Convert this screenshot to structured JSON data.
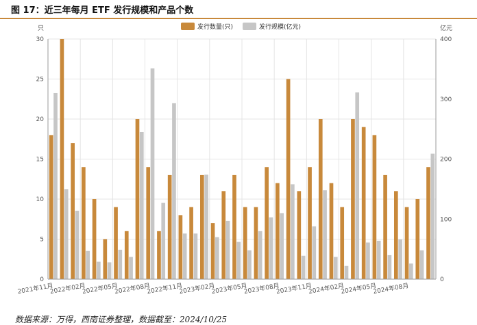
{
  "figure_title": "图 17：近三年每月 ETF 发行规模和产品个数",
  "source_note": "数据来源：万得，西南证券整理，数据截至：2024/10/25",
  "colors": {
    "series1": "#c8893b",
    "series2": "#c6c6c6",
    "title_rule": "#c8893b"
  },
  "chart_data": {
    "type": "bar",
    "categories": [
      "2021年11月",
      "2021年12月",
      "2022年01月",
      "2022年02月",
      "2022年03月",
      "2022年04月",
      "2022年05月",
      "2022年06月",
      "2022年07月",
      "2022年08月",
      "2022年09月",
      "2022年10月",
      "2022年11月",
      "2022年12月",
      "2023年01月",
      "2023年02月",
      "2023年03月",
      "2023年04月",
      "2023年05月",
      "2023年06月",
      "2023年07月",
      "2023年08月",
      "2023年09月",
      "2023年10月",
      "2023年11月",
      "2023年12月",
      "2024年01月",
      "2024年02月",
      "2024年03月",
      "2024年04月",
      "2024年05月",
      "2024年06月",
      "2024年07月",
      "2024年08月",
      "2024年09月",
      "2024年10月"
    ],
    "x_tick_labels": [
      "2021年11月",
      "2022年02月",
      "2022年05月",
      "2022年08月",
      "2022年11月",
      "2023年02月",
      "2023年05月",
      "2023年08月",
      "2023年11月",
      "2024年02月",
      "2024年05月",
      "2024年08月"
    ],
    "series": [
      {
        "name": "发行数量(只)",
        "axis": "left",
        "values": [
          18,
          30,
          17,
          14,
          10,
          5,
          9,
          6,
          20,
          14,
          6,
          13,
          8,
          9,
          13,
          7,
          11,
          13,
          9,
          9,
          14,
          12,
          25,
          11,
          14,
          20,
          12,
          9,
          20,
          19,
          18,
          13,
          11,
          9,
          10,
          14
        ]
      },
      {
        "name": "发行规模(亿元)",
        "axis": "right",
        "values": [
          310,
          150,
          114,
          47,
          29,
          28,
          49,
          37,
          245,
          351,
          127,
          293,
          76,
          76,
          174,
          70,
          97,
          62,
          48,
          80,
          103,
          110,
          158,
          39,
          88,
          148,
          37,
          22,
          311,
          61,
          64,
          40,
          66,
          26,
          48,
          209
        ]
      }
    ],
    "left_axis": {
      "unit": "只",
      "ylim": [
        0,
        30
      ],
      "ticks": [
        0,
        5,
        10,
        15,
        20,
        25,
        30
      ]
    },
    "right_axis": {
      "unit": "亿元",
      "ylim": [
        0,
        400
      ],
      "ticks": [
        0,
        100,
        200,
        300,
        400
      ]
    },
    "grid": true,
    "legend_position": "top-center"
  }
}
